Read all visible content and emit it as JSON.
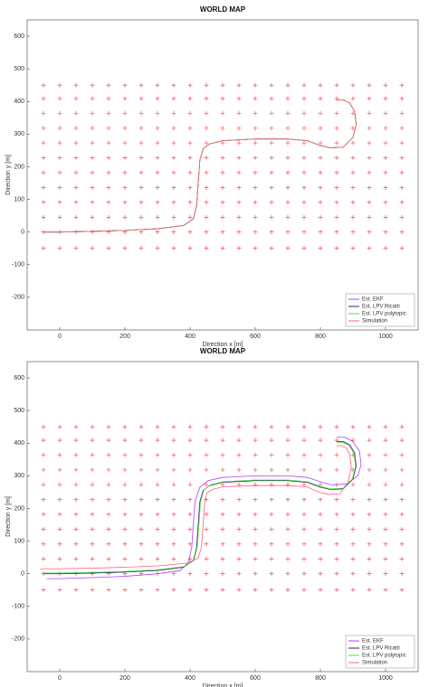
{
  "chart_data": [
    {
      "type": "line",
      "title": "WORLD MAP",
      "x_label": "Direction x [m]",
      "y_label": "Direction y [m]",
      "xlim": [
        -100,
        1100
      ],
      "ylim": [
        -300,
        650
      ],
      "xticks": [
        0,
        200,
        400,
        600,
        800,
        1000
      ],
      "yticks": [
        -200,
        -100,
        0,
        100,
        200,
        300,
        400,
        500,
        600
      ],
      "landmark_color": "#ff3030",
      "landmark_x": [
        -50,
        0,
        50,
        100,
        150,
        200,
        250,
        300,
        350,
        400,
        450,
        500,
        550,
        600,
        650,
        700,
        750,
        800,
        850,
        900,
        950,
        1000,
        1050
      ],
      "landmark_y": [
        -50,
        0,
        45,
        91,
        136,
        182,
        227,
        273,
        318,
        364,
        409,
        450
      ],
      "legend": "lower right",
      "series": [
        {
          "name": "Est. EKF",
          "color": "#b040ff",
          "x": [
            -50,
            0,
            100,
            200,
            300,
            380,
            410,
            420,
            425,
            430,
            440,
            460,
            500,
            600,
            700,
            760,
            800,
            830,
            870,
            900,
            910,
            905,
            890,
            870,
            850
          ],
          "values": [
            0,
            0,
            2,
            5,
            10,
            20,
            40,
            80,
            150,
            220,
            255,
            270,
            280,
            285,
            285,
            280,
            265,
            258,
            260,
            290,
            330,
            370,
            395,
            405,
            405
          ]
        },
        {
          "name": "Est. LPV Ricatti",
          "color": "#302060",
          "x": [
            -50,
            0,
            100,
            200,
            300,
            380,
            410,
            420,
            425,
            430,
            440,
            460,
            500,
            600,
            700,
            760,
            800,
            830,
            870,
            900,
            910,
            905,
            890,
            870,
            850
          ],
          "values": [
            0,
            0,
            2,
            5,
            10,
            20,
            40,
            80,
            150,
            220,
            255,
            270,
            280,
            285,
            285,
            280,
            265,
            258,
            260,
            290,
            330,
            370,
            395,
            405,
            405
          ]
        },
        {
          "name": "Est. LPV polytopic",
          "color": "#40e040",
          "x": [
            -50,
            0,
            100,
            200,
            300,
            380,
            410,
            420,
            425,
            430,
            440,
            460,
            500,
            600,
            700,
            760,
            800,
            830,
            870,
            900,
            910,
            905,
            890,
            870,
            850
          ],
          "values": [
            0,
            0,
            2,
            5,
            10,
            20,
            40,
            80,
            150,
            220,
            255,
            270,
            280,
            285,
            285,
            280,
            265,
            258,
            260,
            290,
            330,
            370,
            395,
            405,
            405
          ]
        },
        {
          "name": "Simulation",
          "color": "#ff6080",
          "x": [
            -50,
            0,
            100,
            200,
            300,
            380,
            410,
            420,
            425,
            430,
            440,
            460,
            500,
            600,
            700,
            760,
            800,
            830,
            870,
            900,
            910,
            905,
            890,
            870,
            850
          ],
          "values": [
            0,
            0,
            2,
            5,
            10,
            20,
            40,
            80,
            150,
            220,
            255,
            270,
            280,
            285,
            285,
            280,
            265,
            258,
            260,
            290,
            330,
            370,
            395,
            405,
            405
          ]
        }
      ]
    },
    {
      "type": "line",
      "title": "WORLD MAP",
      "x_label": "Direction x [m]",
      "y_label": "Direction y [m]",
      "xlim": [
        -100,
        1100
      ],
      "ylim": [
        -300,
        650
      ],
      "xticks": [
        0,
        200,
        400,
        600,
        800,
        1000
      ],
      "yticks": [
        -200,
        -100,
        0,
        100,
        200,
        300,
        400,
        500,
        600
      ],
      "landmark_color": "#ff3030",
      "landmark_x": [
        -50,
        0,
        50,
        100,
        150,
        200,
        250,
        300,
        350,
        400,
        450,
        500,
        550,
        600,
        650,
        700,
        750,
        800,
        850,
        900,
        950,
        1000,
        1050
      ],
      "landmark_y": [
        -50,
        0,
        45,
        91,
        136,
        182,
        227,
        273,
        318,
        364,
        409,
        450
      ],
      "legend": "lower right",
      "series": [
        {
          "name": "Est. EKF",
          "color": "#b040ff",
          "x": [
            -40,
            0,
            100,
            200,
            300,
            370,
            395,
            405,
            410,
            415,
            430,
            455,
            500,
            600,
            700,
            760,
            805,
            835,
            880,
            915,
            925,
            920,
            900,
            875,
            850
          ],
          "values": [
            -15,
            -15,
            -12,
            -8,
            0,
            10,
            35,
            80,
            150,
            220,
            265,
            285,
            295,
            300,
            300,
            295,
            280,
            272,
            275,
            300,
            335,
            375,
            405,
            418,
            418
          ]
        },
        {
          "name": "Est. LPV Ricatti",
          "color": "#302060",
          "x": [
            -50,
            0,
            100,
            200,
            300,
            380,
            410,
            420,
            425,
            430,
            440,
            460,
            500,
            600,
            700,
            760,
            800,
            830,
            870,
            900,
            910,
            905,
            890,
            870,
            850
          ],
          "values": [
            0,
            0,
            2,
            5,
            10,
            20,
            40,
            80,
            150,
            220,
            255,
            270,
            280,
            285,
            285,
            280,
            265,
            258,
            260,
            290,
            330,
            370,
            395,
            405,
            405
          ]
        },
        {
          "name": "Est. LPV polytopic",
          "color": "#40e040",
          "x": [
            -50,
            0,
            100,
            200,
            300,
            382,
            412,
            422,
            427,
            432,
            442,
            462,
            502,
            600,
            700,
            760,
            800,
            830,
            870,
            898,
            908,
            903,
            888,
            868,
            850
          ],
          "values": [
            2,
            2,
            4,
            7,
            12,
            22,
            42,
            82,
            150,
            220,
            256,
            272,
            282,
            287,
            287,
            282,
            267,
            260,
            262,
            290,
            330,
            370,
            393,
            403,
            403
          ]
        },
        {
          "name": "Simulation",
          "color": "#ff6080",
          "x": [
            -60,
            0,
            100,
            200,
            300,
            390,
            425,
            435,
            440,
            445,
            452,
            468,
            500,
            600,
            700,
            760,
            795,
            825,
            860,
            885,
            895,
            890,
            880,
            865,
            850
          ],
          "values": [
            15,
            15,
            17,
            20,
            24,
            32,
            48,
            82,
            150,
            220,
            248,
            258,
            266,
            270,
            270,
            266,
            250,
            243,
            245,
            280,
            325,
            365,
            385,
            392,
            392
          ]
        }
      ]
    }
  ]
}
